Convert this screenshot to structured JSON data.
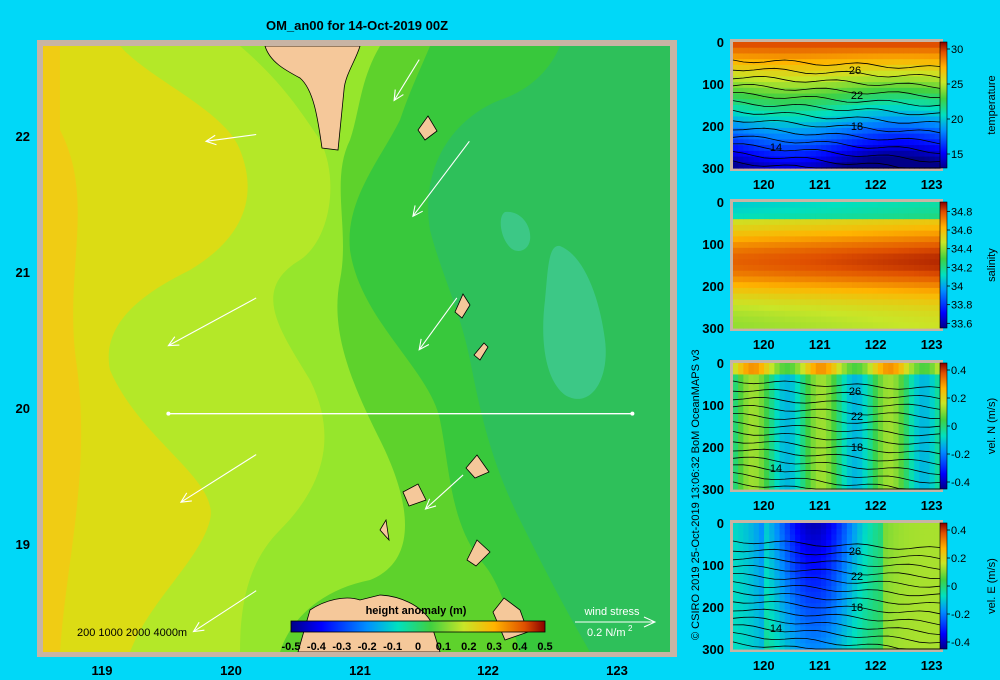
{
  "colors": {
    "background": "#00d8f8",
    "land": "#f5c89a",
    "land_edge": "#c8a888",
    "frame": "#c8b4a4"
  },
  "main_map": {
    "title": "OM_an00 for 14-Oct-2019 00Z",
    "x_ticks": [
      "119",
      "120",
      "121",
      "122",
      "123"
    ],
    "y_ticks": [
      "22",
      "21",
      "20",
      "19"
    ],
    "depth_legend": "200  1000  2000  4000m",
    "colorbar_title": "height anomaly (m)",
    "colorbar_ticks": [
      "-0.5",
      "-0.4",
      "-0.3",
      "-0.2",
      "-0.1",
      "0",
      "0.1",
      "0.2",
      "0.3",
      "0.4",
      "0.5"
    ],
    "wind_label": "wind stress",
    "wind_scale": "0.2 N/m",
    "wind_scale_sup": "2"
  },
  "credit": "© CSIRO 2019  25-Oct-2019 13:06:32 BoM OceanMAPS v3",
  "chart_data": [
    {
      "type": "heatmap",
      "title": "OM_an00 for 14-Oct-2019 00Z",
      "variable": "height anomaly (m)",
      "xlim": [
        118.5,
        123.5
      ],
      "ylim": [
        18.25,
        22.7
      ],
      "x_ticks": [
        119,
        120,
        121,
        122,
        123
      ],
      "y_ticks": [
        19,
        20,
        21,
        22
      ],
      "colorbar_range": [
        -0.5,
        0.5
      ],
      "field_levels": [
        {
          "level": 0.32,
          "color": "#f0cc14"
        },
        {
          "level": 0.28,
          "color": "#dcdc14"
        },
        {
          "level": 0.24,
          "color": "#b4e828"
        },
        {
          "level": 0.2,
          "color": "#96e62c"
        },
        {
          "level": 0.16,
          "color": "#5ed22c"
        },
        {
          "level": 0.12,
          "color": "#38c83c"
        },
        {
          "level": 0.08,
          "color": "#2ec05a"
        },
        {
          "level": 0.04,
          "color": "#3cc886"
        }
      ],
      "section_line": {
        "lat": 20.0,
        "lon": [
          119.5,
          123.2
        ]
      },
      "wind_stress_arrows": [
        {
          "lon": 120.2,
          "lat": 22.05,
          "dlon": -0.4,
          "dlat": -0.05
        },
        {
          "lon": 121.5,
          "lat": 22.6,
          "dlon": -0.2,
          "dlat": -0.3
        },
        {
          "lon": 121.9,
          "lat": 22.0,
          "dlon": -0.45,
          "dlat": -0.55
        },
        {
          "lon": 120.2,
          "lat": 20.85,
          "dlon": -0.7,
          "dlat": -0.35
        },
        {
          "lon": 121.8,
          "lat": 20.85,
          "dlon": -0.3,
          "dlat": -0.38
        },
        {
          "lon": 120.2,
          "lat": 19.7,
          "dlon": -0.6,
          "dlat": -0.35
        },
        {
          "lon": 121.85,
          "lat": 19.55,
          "dlon": -0.3,
          "dlat": -0.25
        },
        {
          "lon": 120.2,
          "lat": 18.7,
          "dlon": -0.5,
          "dlat": -0.3
        }
      ]
    },
    {
      "type": "heatmap",
      "panel": "temperature",
      "colorbar_label": "temperature",
      "x_ticks": [
        120,
        121,
        122,
        123
      ],
      "y_ticks": [
        0,
        100,
        200,
        300
      ],
      "colorbar_ticks": [
        "30",
        "25",
        "20",
        "15"
      ],
      "clim": [
        13,
        31
      ],
      "contour_labels": [
        "26",
        "22",
        "18",
        "14"
      ]
    },
    {
      "type": "heatmap",
      "panel": "salinity",
      "colorbar_label": "salinity",
      "x_ticks": [
        120,
        121,
        122,
        123
      ],
      "y_ticks": [
        0,
        100,
        200,
        300
      ],
      "colorbar_ticks": [
        "34.8",
        "34.6",
        "34.4",
        "34.2",
        "34",
        "33.8",
        "33.6"
      ],
      "clim": [
        33.55,
        34.9
      ]
    },
    {
      "type": "heatmap",
      "panel": "vel. N (m/s)",
      "colorbar_label": "vel. N (m/s)",
      "x_ticks": [
        120,
        121,
        122,
        123
      ],
      "y_ticks": [
        0,
        100,
        200,
        300
      ],
      "colorbar_ticks": [
        "0.4",
        "0.2",
        "0",
        "-0.2",
        "-0.4"
      ],
      "clim": [
        -0.45,
        0.45
      ],
      "contour_labels": [
        "26",
        "22",
        "18",
        "14"
      ]
    },
    {
      "type": "heatmap",
      "panel": "vel. E (m/s)",
      "colorbar_label": "vel. E (m/s)",
      "x_ticks": [
        120,
        121,
        122,
        123
      ],
      "y_ticks": [
        0,
        100,
        200,
        300
      ],
      "colorbar_ticks": [
        "0.4",
        "0.2",
        "0",
        "-0.2",
        "-0.4"
      ],
      "clim": [
        -0.45,
        0.45
      ],
      "contour_labels": [
        "26",
        "22",
        "18",
        "14"
      ]
    }
  ]
}
